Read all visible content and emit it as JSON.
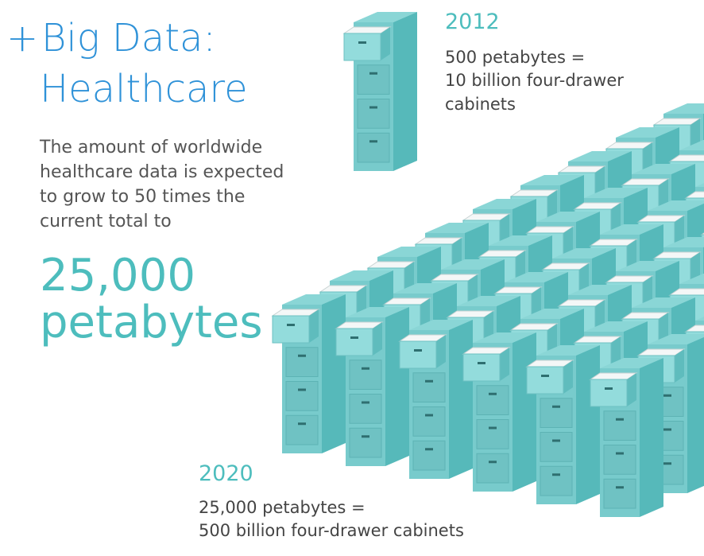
{
  "header": {
    "prefix": "+",
    "title_lines": [
      "Big Data:",
      "Healthcare"
    ]
  },
  "intro": {
    "lines": [
      "The amount of worldwide",
      "healthcare data is expected",
      "to grow to 50 times the",
      "current total to"
    ]
  },
  "highlight": {
    "lines": [
      "25,000",
      "petabytes"
    ]
  },
  "year_2012": {
    "year": "2012",
    "lines": [
      "500 petabytes =",
      "10 billion four-drawer",
      "cabinets"
    ]
  },
  "year_2020": {
    "year": "2020",
    "lines": [
      "25,000 petabytes =",
      "500 billion four-drawer cabinets"
    ]
  }
}
